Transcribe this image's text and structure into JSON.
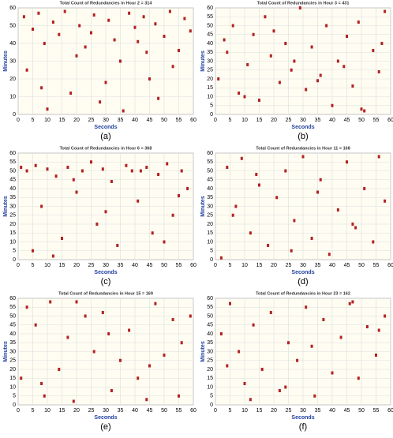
{
  "chart_data": [
    {
      "type": "scatter",
      "title": "Total Count of Redundancies in Hour 2 = 314",
      "xlabel": "Seconds",
      "ylabel": "Minutes",
      "caption": "(a)",
      "color": "#b22222",
      "xlim": [
        0,
        60
      ],
      "ylim": [
        0,
        60
      ],
      "xticks": [
        0,
        5,
        10,
        15,
        20,
        25,
        30,
        35,
        40,
        45,
        50,
        55,
        60
      ],
      "yticks": [
        0,
        10,
        20,
        30,
        40,
        50,
        60
      ],
      "grid": true,
      "x": [
        2,
        5,
        7,
        9,
        12,
        14,
        16,
        18,
        21,
        23,
        26,
        28,
        31,
        33,
        35,
        38,
        40,
        43,
        45,
        47,
        50,
        52,
        55,
        57,
        59,
        3,
        10,
        20,
        30,
        41,
        48,
        53,
        8,
        25,
        36,
        44
      ],
      "y": [
        55,
        48,
        57,
        40,
        52,
        45,
        58,
        12,
        50,
        38,
        56,
        7,
        53,
        42,
        30,
        57,
        49,
        55,
        20,
        51,
        44,
        58,
        36,
        54,
        47,
        25,
        3,
        33,
        18,
        41,
        9,
        27,
        15,
        46,
        2,
        35
      ]
    },
    {
      "type": "scatter",
      "title": "Total Count of Redundancies in Hour 3 = 431",
      "xlabel": "Seconds",
      "ylabel": "Minutes",
      "caption": "(b)",
      "color": "#b22222",
      "xlim": [
        0,
        60
      ],
      "ylim": [
        0,
        60
      ],
      "xticks": [
        0,
        5,
        10,
        15,
        20,
        25,
        30,
        35,
        40,
        45,
        50,
        55,
        60
      ],
      "yticks": [
        0,
        5,
        10,
        15,
        20,
        25,
        30,
        35,
        40,
        45,
        50,
        55,
        60
      ],
      "grid": true,
      "x": [
        1,
        4,
        6,
        8,
        11,
        13,
        15,
        17,
        19,
        22,
        24,
        26,
        29,
        31,
        33,
        36,
        38,
        40,
        42,
        45,
        47,
        49,
        51,
        54,
        56,
        58,
        3,
        10,
        20,
        27,
        35,
        44,
        50,
        57
      ],
      "y": [
        20,
        35,
        50,
        12,
        28,
        45,
        8,
        55,
        33,
        18,
        40,
        25,
        60,
        14,
        38,
        22,
        50,
        5,
        30,
        44,
        16,
        52,
        2,
        36,
        24,
        58,
        42,
        10,
        47,
        30,
        19,
        27,
        3,
        40
      ]
    },
    {
      "type": "scatter",
      "title": "Total Count of Redundancies in Hour 6 = 368",
      "xlabel": "Seconds",
      "ylabel": "Minutes",
      "caption": "(c)",
      "color": "#b22222",
      "xlim": [
        0,
        60
      ],
      "ylim": [
        0,
        60
      ],
      "xticks": [
        0,
        5,
        10,
        15,
        20,
        25,
        30,
        35,
        40,
        45,
        50,
        55,
        60
      ],
      "yticks": [
        0,
        5,
        10,
        15,
        20,
        25,
        30,
        35,
        40,
        45,
        50,
        55,
        60
      ],
      "grid": true,
      "x": [
        1,
        3,
        6,
        8,
        10,
        13,
        15,
        17,
        20,
        22,
        25,
        27,
        29,
        32,
        34,
        37,
        39,
        41,
        44,
        46,
        48,
        51,
        53,
        56,
        58,
        5,
        12,
        19,
        30,
        42,
        50,
        55
      ],
      "y": [
        52,
        50,
        53,
        30,
        51,
        47,
        12,
        52,
        38,
        50,
        55,
        20,
        51,
        44,
        8,
        53,
        50,
        33,
        52,
        15,
        48,
        54,
        25,
        50,
        40,
        5,
        2,
        45,
        27,
        50,
        10,
        36
      ]
    },
    {
      "type": "scatter",
      "title": "Total Count of Redundancies in Hour 11 = 168",
      "xlabel": "Seconds",
      "ylabel": "Minutes",
      "caption": "(d)",
      "color": "#b22222",
      "xlim": [
        0,
        60
      ],
      "ylim": [
        0,
        60
      ],
      "xticks": [
        0,
        5,
        10,
        15,
        20,
        25,
        30,
        35,
        40,
        45,
        50,
        55,
        60
      ],
      "yticks": [
        0,
        5,
        10,
        15,
        20,
        25,
        30,
        35,
        40,
        45,
        50,
        55,
        60
      ],
      "grid": true,
      "x": [
        2,
        4,
        7,
        9,
        12,
        15,
        18,
        21,
        24,
        27,
        30,
        33,
        36,
        39,
        42,
        45,
        48,
        51,
        54,
        56,
        58,
        6,
        14,
        26,
        35,
        47
      ],
      "y": [
        1,
        52,
        30,
        57,
        15,
        42,
        8,
        35,
        50,
        22,
        58,
        12,
        45,
        3,
        28,
        55,
        18,
        40,
        10,
        58,
        33,
        25,
        48,
        5,
        38,
        20
      ]
    },
    {
      "type": "scatter",
      "title": "Total Count of Redundancies in Hour 15 = 169",
      "xlabel": "Seconds",
      "ylabel": "Minutes",
      "caption": "(e)",
      "color": "#b22222",
      "xlim": [
        0,
        60
      ],
      "ylim": [
        0,
        60
      ],
      "xticks": [
        0,
        5,
        10,
        15,
        20,
        25,
        30,
        35,
        40,
        45,
        50,
        55,
        60
      ],
      "yticks": [
        0,
        5,
        10,
        15,
        20,
        25,
        30,
        35,
        40,
        45,
        50,
        55,
        60
      ],
      "grid": true,
      "x": [
        1,
        3,
        6,
        9,
        11,
        14,
        17,
        20,
        23,
        26,
        29,
        32,
        35,
        38,
        41,
        44,
        47,
        50,
        53,
        56,
        59,
        8,
        19,
        31,
        45,
        55
      ],
      "y": [
        15,
        55,
        45,
        5,
        58,
        20,
        38,
        58,
        50,
        30,
        52,
        8,
        25,
        42,
        15,
        3,
        57,
        28,
        48,
        35,
        50,
        12,
        2,
        40,
        22,
        5
      ]
    },
    {
      "type": "scatter",
      "title": "Total Count of Redundancies in Hour 23 = 162",
      "xlabel": "Seconds",
      "ylabel": "Minutes",
      "caption": "(f)",
      "color": "#b22222",
      "xlim": [
        0,
        60
      ],
      "ylim": [
        0,
        60
      ],
      "xticks": [
        0,
        5,
        10,
        15,
        20,
        25,
        30,
        35,
        40,
        45,
        50,
        55,
        60
      ],
      "yticks": [
        0,
        5,
        10,
        15,
        20,
        25,
        30,
        35,
        40,
        45,
        50,
        55,
        60
      ],
      "grid": true,
      "x": [
        2,
        5,
        8,
        10,
        13,
        16,
        19,
        22,
        25,
        28,
        31,
        34,
        37,
        40,
        43,
        46,
        49,
        52,
        55,
        58,
        4,
        12,
        24,
        33,
        47,
        56
      ],
      "y": [
        40,
        57,
        30,
        12,
        45,
        20,
        52,
        8,
        35,
        25,
        55,
        5,
        48,
        18,
        38,
        57,
        15,
        44,
        28,
        50,
        22,
        3,
        10,
        33,
        58,
        42
      ]
    }
  ]
}
